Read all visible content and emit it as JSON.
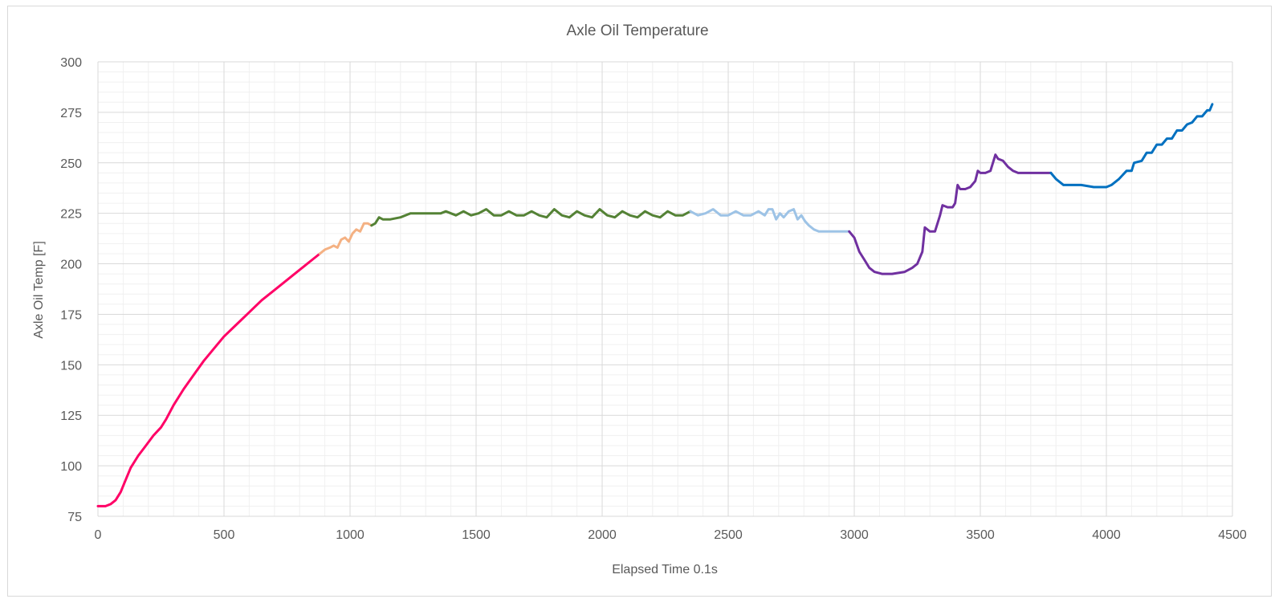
{
  "chart_data": {
    "type": "line",
    "title": "Axle Oil Temperature",
    "xlabel": "Elapsed Time 0.1s",
    "ylabel": "Axle Oil Temp [F]",
    "xlim": [
      0,
      4500
    ],
    "ylim": [
      75,
      300
    ],
    "x_ticks": [
      0,
      500,
      1000,
      1500,
      2000,
      2500,
      3000,
      3500,
      4000,
      4500
    ],
    "y_ticks": [
      75,
      100,
      125,
      150,
      175,
      200,
      225,
      250,
      275,
      300
    ],
    "x_tick_labels": [
      "0",
      "500",
      "1000",
      "1500",
      "2000",
      "2500",
      "3000",
      "3500",
      "4000",
      "4500"
    ],
    "y_tick_labels": [
      "75",
      "100",
      "125",
      "150",
      "175",
      "200",
      "225",
      "250",
      "275",
      "300"
    ],
    "grid": "major and minor",
    "legend": "none",
    "series": [
      {
        "color": "#ff0066",
        "points": [
          [
            0,
            80
          ],
          [
            30,
            80
          ],
          [
            50,
            81
          ],
          [
            70,
            83
          ],
          [
            90,
            87
          ],
          [
            110,
            93
          ],
          [
            130,
            99
          ],
          [
            160,
            105
          ],
          [
            190,
            110
          ],
          [
            220,
            115
          ],
          [
            250,
            119
          ],
          [
            270,
            123
          ],
          [
            300,
            130
          ],
          [
            340,
            138
          ],
          [
            380,
            145
          ],
          [
            420,
            152
          ],
          [
            460,
            158
          ],
          [
            500,
            164
          ],
          [
            550,
            170
          ],
          [
            600,
            176
          ],
          [
            650,
            182
          ],
          [
            700,
            187
          ],
          [
            750,
            192
          ],
          [
            800,
            197
          ],
          [
            850,
            202
          ],
          [
            880,
            205
          ]
        ]
      },
      {
        "color": "#f4b183",
        "points": [
          [
            880,
            205
          ],
          [
            900,
            207
          ],
          [
            920,
            208
          ],
          [
            935,
            209
          ],
          [
            950,
            208
          ],
          [
            965,
            212
          ],
          [
            980,
            213
          ],
          [
            995,
            211
          ],
          [
            1010,
            215
          ],
          [
            1025,
            217
          ],
          [
            1040,
            216
          ],
          [
            1055,
            220
          ],
          [
            1070,
            220
          ],
          [
            1085,
            219
          ]
        ]
      },
      {
        "color": "#548235",
        "points": [
          [
            1085,
            219
          ],
          [
            1100,
            220
          ],
          [
            1115,
            223
          ],
          [
            1130,
            222
          ],
          [
            1160,
            222
          ],
          [
            1200,
            223
          ],
          [
            1240,
            225
          ],
          [
            1280,
            225
          ],
          [
            1320,
            225
          ],
          [
            1360,
            225
          ],
          [
            1380,
            226
          ],
          [
            1400,
            225
          ],
          [
            1420,
            224
          ],
          [
            1450,
            226
          ],
          [
            1480,
            224
          ],
          [
            1510,
            225
          ],
          [
            1540,
            227
          ],
          [
            1570,
            224
          ],
          [
            1600,
            224
          ],
          [
            1630,
            226
          ],
          [
            1660,
            224
          ],
          [
            1690,
            224
          ],
          [
            1720,
            226
          ],
          [
            1750,
            224
          ],
          [
            1780,
            223
          ],
          [
            1810,
            227
          ],
          [
            1840,
            224
          ],
          [
            1870,
            223
          ],
          [
            1900,
            226
          ],
          [
            1930,
            224
          ],
          [
            1960,
            223
          ],
          [
            1990,
            227
          ],
          [
            2020,
            224
          ],
          [
            2050,
            223
          ],
          [
            2080,
            226
          ],
          [
            2110,
            224
          ],
          [
            2140,
            223
          ],
          [
            2170,
            226
          ],
          [
            2200,
            224
          ],
          [
            2230,
            223
          ],
          [
            2260,
            226
          ],
          [
            2290,
            224
          ],
          [
            2320,
            224
          ],
          [
            2350,
            226
          ]
        ]
      },
      {
        "color": "#9dc3e6",
        "points": [
          [
            2350,
            226
          ],
          [
            2380,
            224
          ],
          [
            2410,
            225
          ],
          [
            2440,
            227
          ],
          [
            2470,
            224
          ],
          [
            2500,
            224
          ],
          [
            2530,
            226
          ],
          [
            2560,
            224
          ],
          [
            2590,
            224
          ],
          [
            2620,
            226
          ],
          [
            2645,
            224
          ],
          [
            2660,
            227
          ],
          [
            2675,
            227
          ],
          [
            2690,
            222
          ],
          [
            2705,
            225
          ],
          [
            2720,
            223
          ],
          [
            2740,
            226
          ],
          [
            2760,
            227
          ],
          [
            2775,
            222
          ],
          [
            2790,
            224
          ],
          [
            2805,
            221
          ],
          [
            2820,
            219
          ],
          [
            2840,
            217
          ],
          [
            2860,
            216
          ],
          [
            2890,
            216
          ],
          [
            2920,
            216
          ],
          [
            2950,
            216
          ],
          [
            2980,
            216
          ]
        ]
      },
      {
        "color": "#7030a0",
        "points": [
          [
            2980,
            216
          ],
          [
            3000,
            213
          ],
          [
            3020,
            206
          ],
          [
            3040,
            202
          ],
          [
            3060,
            198
          ],
          [
            3080,
            196
          ],
          [
            3110,
            195
          ],
          [
            3150,
            195
          ],
          [
            3200,
            196
          ],
          [
            3230,
            198
          ],
          [
            3250,
            200
          ],
          [
            3270,
            206
          ],
          [
            3280,
            218
          ],
          [
            3300,
            216
          ],
          [
            3320,
            216
          ],
          [
            3340,
            224
          ],
          [
            3350,
            229
          ],
          [
            3370,
            228
          ],
          [
            3390,
            228
          ],
          [
            3400,
            230
          ],
          [
            3410,
            239
          ],
          [
            3420,
            237
          ],
          [
            3440,
            237
          ],
          [
            3460,
            238
          ],
          [
            3480,
            241
          ],
          [
            3490,
            246
          ],
          [
            3500,
            245
          ],
          [
            3520,
            245
          ],
          [
            3540,
            246
          ],
          [
            3550,
            250
          ],
          [
            3560,
            254
          ],
          [
            3570,
            252
          ],
          [
            3590,
            251
          ],
          [
            3610,
            248
          ],
          [
            3630,
            246
          ],
          [
            3650,
            245
          ],
          [
            3700,
            245
          ],
          [
            3750,
            245
          ],
          [
            3780,
            245
          ]
        ]
      },
      {
        "color": "#0070c0",
        "points": [
          [
            3780,
            245
          ],
          [
            3800,
            242
          ],
          [
            3830,
            239
          ],
          [
            3860,
            239
          ],
          [
            3900,
            239
          ],
          [
            3950,
            238
          ],
          [
            4000,
            238
          ],
          [
            4020,
            239
          ],
          [
            4050,
            242
          ],
          [
            4080,
            246
          ],
          [
            4100,
            246
          ],
          [
            4110,
            250
          ],
          [
            4140,
            251
          ],
          [
            4160,
            255
          ],
          [
            4180,
            255
          ],
          [
            4200,
            259
          ],
          [
            4220,
            259
          ],
          [
            4240,
            262
          ],
          [
            4260,
            262
          ],
          [
            4280,
            266
          ],
          [
            4300,
            266
          ],
          [
            4320,
            269
          ],
          [
            4340,
            270
          ],
          [
            4360,
            273
          ],
          [
            4380,
            273
          ],
          [
            4400,
            276
          ],
          [
            4410,
            276
          ],
          [
            4420,
            279
          ]
        ]
      }
    ]
  }
}
